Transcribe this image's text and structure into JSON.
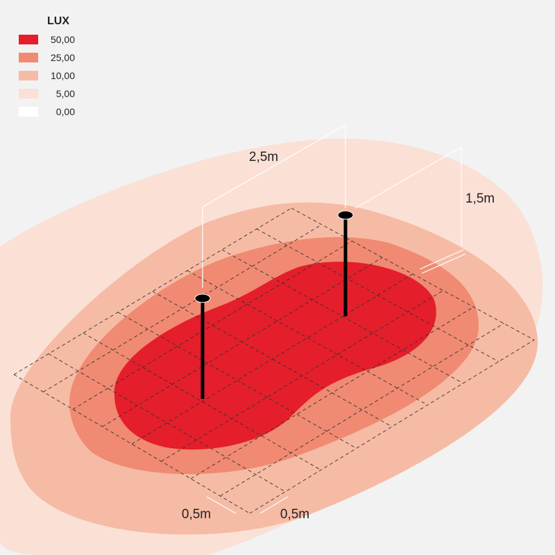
{
  "legend": {
    "title": "LUX",
    "items": [
      {
        "label": "50,00",
        "color": "#e41e2b"
      },
      {
        "label": "25,00",
        "color": "#f08a72"
      },
      {
        "label": "10,00",
        "color": "#f6bba5"
      },
      {
        "label": "5,00",
        "color": "#fbe0d6"
      },
      {
        "label": "0,00",
        "color": "#ffffff"
      }
    ]
  },
  "dimensions": {
    "spacing": "2,5m",
    "height": "1,5m",
    "grid_x": "0,5m",
    "grid_y": "0,5m"
  }
}
